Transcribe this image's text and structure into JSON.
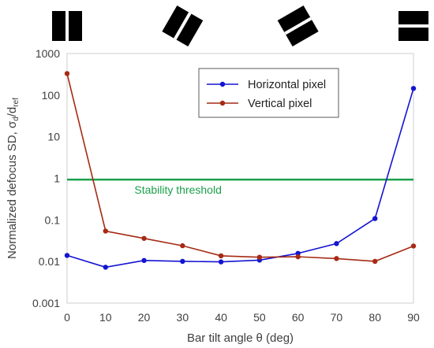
{
  "chart_data": {
    "type": "line",
    "xlabel": "Bar tilt angle θ (deg)",
    "ylabel": {
      "main": "Normalized defocus SD, σ",
      "sub1": "d",
      "mid": "/d",
      "sub2": "ref"
    },
    "xlim": [
      0,
      90
    ],
    "ylim": [
      0.001,
      1000
    ],
    "yscale": "log",
    "x_ticks": [
      "0",
      "10",
      "20",
      "30",
      "40",
      "50",
      "60",
      "70",
      "80",
      "90"
    ],
    "y_ticks": [
      "1000",
      "100",
      "10",
      "1",
      "0.1",
      "0.01",
      "0.001"
    ],
    "grid": false,
    "legend_position": "top-right",
    "series": [
      {
        "name": "Horizontal pixel",
        "color": "#1414d2",
        "x": [
          0,
          10,
          20,
          30,
          40,
          50,
          60,
          70,
          80,
          90
        ],
        "y": [
          0.014,
          0.0073,
          0.0106,
          0.0101,
          0.0098,
          0.0108,
          0.0157,
          0.027,
          0.108,
          145
        ]
      },
      {
        "name": "Vertical pixel",
        "color": "#a62a14",
        "x": [
          0,
          10,
          20,
          30,
          40,
          50,
          60,
          70,
          80,
          90
        ],
        "y": [
          330,
          0.054,
          0.036,
          0.024,
          0.0137,
          0.0127,
          0.013,
          0.0118,
          0.0101,
          0.0236
        ]
      }
    ],
    "threshold": {
      "label": "Stability threshold",
      "value": 0.93,
      "color": "#1aa04a"
    },
    "bar_icons": [
      {
        "angle_deg": 0,
        "at_x": 0
      },
      {
        "angle_deg": 30,
        "at_x": 30
      },
      {
        "angle_deg": 60,
        "at_x": 60
      },
      {
        "angle_deg": 90,
        "at_x": 90
      }
    ]
  }
}
